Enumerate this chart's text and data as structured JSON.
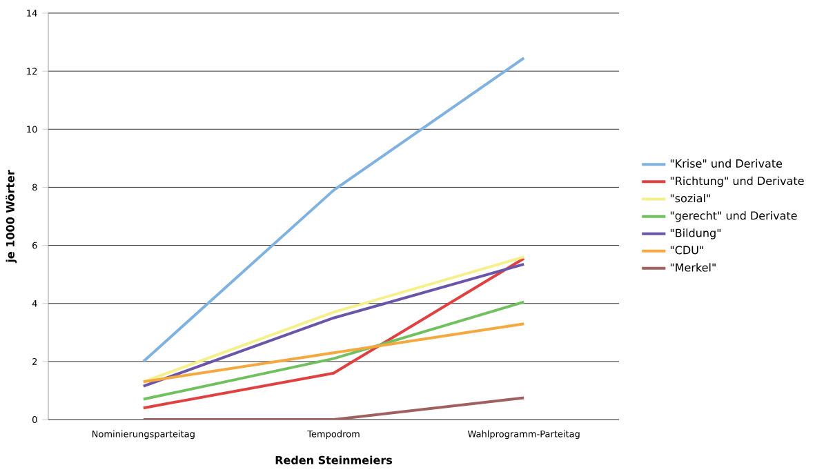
{
  "chart_data": {
    "type": "line",
    "xlabel": "Reden Steinmeiers",
    "ylabel": "je 1000 Wörter",
    "categories": [
      "Nominierungsparteitag",
      "Tempodrom",
      "Wahlprogramm-Parteitag"
    ],
    "series": [
      {
        "name": "\"Krise\" und Derivate",
        "color": "#7fb2e0",
        "values": [
          2.0,
          7.9,
          12.45
        ]
      },
      {
        "name": "\"Richtung\" und Derivate",
        "color": "#e04040",
        "values": [
          0.4,
          1.6,
          5.55
        ]
      },
      {
        "name": "\"sozial\"",
        "color": "#f5f08a",
        "values": [
          1.3,
          3.7,
          5.6
        ]
      },
      {
        "name": "\"gerecht\" und Derivate",
        "color": "#70c060",
        "values": [
          0.7,
          2.1,
          4.05
        ]
      },
      {
        "name": "\"Bildung\"",
        "color": "#6a55a8",
        "values": [
          1.15,
          3.5,
          5.35
        ]
      },
      {
        "name": "\"CDU\"",
        "color": "#f5a840",
        "values": [
          1.3,
          2.3,
          3.3
        ]
      },
      {
        "name": "\"Merkel\"",
        "color": "#a06060",
        "values": [
          0,
          0,
          0.75
        ]
      }
    ],
    "ylim": [
      0,
      14
    ],
    "yticks": [
      0,
      2,
      4,
      6,
      8,
      10,
      12,
      14
    ],
    "grid": "y",
    "legend": "right",
    "marker": "none",
    "line_style": "solid"
  }
}
